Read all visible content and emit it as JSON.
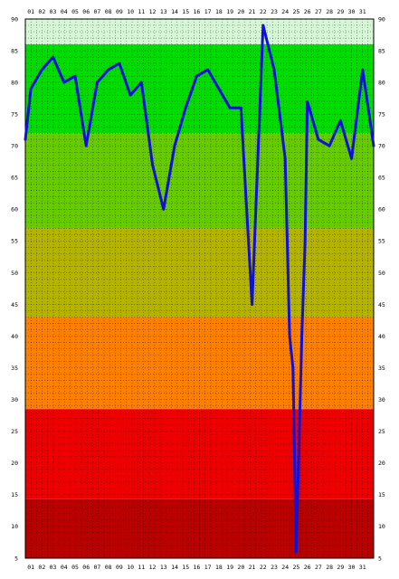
{
  "chart_data": {
    "type": "line",
    "title": "",
    "xlabel": "",
    "ylabel": "",
    "categories": [
      "01",
      "02",
      "03",
      "04",
      "05",
      "06",
      "07",
      "08",
      "09",
      "10",
      "11",
      "12",
      "13",
      "14",
      "15",
      "16",
      "17",
      "18",
      "19",
      "20",
      "21",
      "22",
      "23",
      "24",
      "25",
      "26",
      "27",
      "28",
      "29",
      "30",
      "31"
    ],
    "yticks": [
      "5",
      "10",
      "15",
      "20",
      "25",
      "30",
      "35",
      "40",
      "45",
      "50",
      "55",
      "60",
      "65",
      "70",
      "75",
      "80",
      "85",
      "90"
    ],
    "ylim": [
      5,
      90
    ],
    "grid": true,
    "legend": "none",
    "series": [
      {
        "color": "#1010d8",
        "x": [
          0.5,
          1,
          2,
          3,
          4,
          5,
          6,
          7,
          8,
          9,
          10,
          11,
          12,
          13,
          14,
          15,
          16,
          17,
          18,
          19,
          19.7,
          20,
          21,
          22,
          23,
          24,
          24.4,
          24.7,
          25,
          25.5,
          25.8,
          26,
          27,
          28,
          29,
          30,
          31,
          32
        ],
        "values": [
          71,
          79,
          82,
          84,
          80,
          81,
          70,
          80,
          82,
          83,
          78,
          80,
          67,
          60,
          70,
          76,
          81,
          82,
          79,
          76,
          76,
          76,
          45,
          89,
          82,
          68,
          40,
          35,
          6,
          40,
          55,
          77,
          71,
          70,
          74,
          68,
          82,
          70
        ]
      }
    ],
    "bands": [
      {
        "from": 86,
        "to": 90,
        "color": "#d6f7d6"
      },
      {
        "from": 72,
        "to": 86,
        "color": "#00dd00"
      },
      {
        "from": 57,
        "to": 72,
        "color": "#66cc00"
      },
      {
        "from": 43,
        "to": 57,
        "color": "#b3b300"
      },
      {
        "from": 28.5,
        "to": 43,
        "color": "#ff8000"
      },
      {
        "from": 14.3,
        "to": 28.5,
        "color": "#ee0000"
      },
      {
        "from": 5,
        "to": 14.3,
        "color": "#bb0000"
      }
    ]
  }
}
